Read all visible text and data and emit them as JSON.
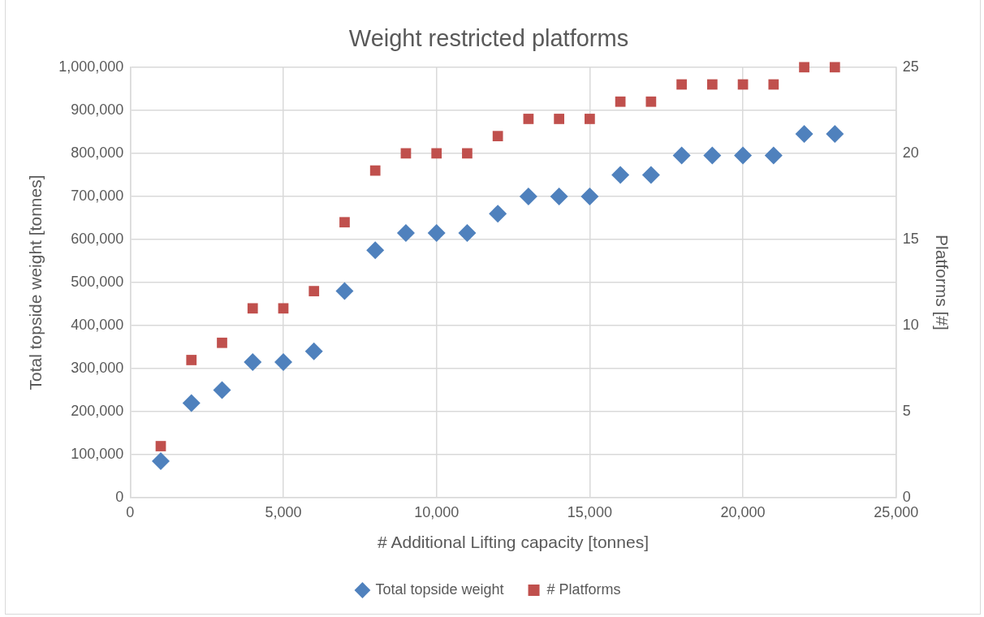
{
  "chart_data": {
    "type": "scatter",
    "title": "Weight restricted platforms",
    "xlabel": "# Additional Lifting capacity [tonnes]",
    "ylabel": "Total topside weight [tonnes]",
    "y2label": "Platforms [#]",
    "x": [
      1000,
      2000,
      3000,
      4000,
      5000,
      6000,
      7000,
      8000,
      9000,
      10000,
      11000,
      12000,
      13000,
      14000,
      15000,
      16000,
      17000,
      18000,
      19000,
      20000,
      21000,
      22000,
      23000
    ],
    "series": [
      {
        "name": "Total topside weight",
        "color": "#4f81bd",
        "marker": "diamond",
        "values": [
          85000,
          220000,
          250000,
          315000,
          315000,
          340000,
          480000,
          575000,
          615000,
          615000,
          615000,
          660000,
          700000,
          700000,
          700000,
          750000,
          750000,
          795000,
          795000,
          795000,
          795000,
          845000,
          845000
        ]
      },
      {
        "name": "# Platforms",
        "color": "#c0504d",
        "marker": "square",
        "axis": "y2",
        "values": [
          3,
          8,
          9,
          11,
          11,
          12,
          16,
          19,
          20,
          20,
          20,
          21,
          22,
          22,
          22,
          23,
          23,
          24,
          24,
          24,
          24,
          25,
          25
        ]
      }
    ],
    "xlim": [
      0,
      25000
    ],
    "xticks": [
      0,
      {
        "value": 5000,
        "label": "5,000"
      },
      {
        "value": 10000,
        "label": "10,000"
      },
      {
        "value": 15000,
        "label": "15,000"
      },
      {
        "value": 20000,
        "label": "20,000"
      },
      {
        "value": 25000,
        "label": "25,000"
      }
    ],
    "ylim": [
      0,
      1000000
    ],
    "yticks": [
      0,
      {
        "value": 100000,
        "label": "100,000"
      },
      {
        "value": 200000,
        "label": "200,000"
      },
      {
        "value": 300000,
        "label": "300,000"
      },
      {
        "value": 400000,
        "label": "400,000"
      },
      {
        "value": 500000,
        "label": "500,000"
      },
      {
        "value": 600000,
        "label": "600,000"
      },
      {
        "value": 700000,
        "label": "700,000"
      },
      {
        "value": 800000,
        "label": "800,000"
      },
      {
        "value": 900000,
        "label": "900,000"
      },
      {
        "value": 1000000,
        "label": "1,000,000"
      }
    ],
    "y2lim": [
      0,
      25
    ],
    "y2ticks": [
      0,
      5,
      10,
      15,
      20,
      25
    ],
    "grid": true,
    "legend": "bottom"
  }
}
